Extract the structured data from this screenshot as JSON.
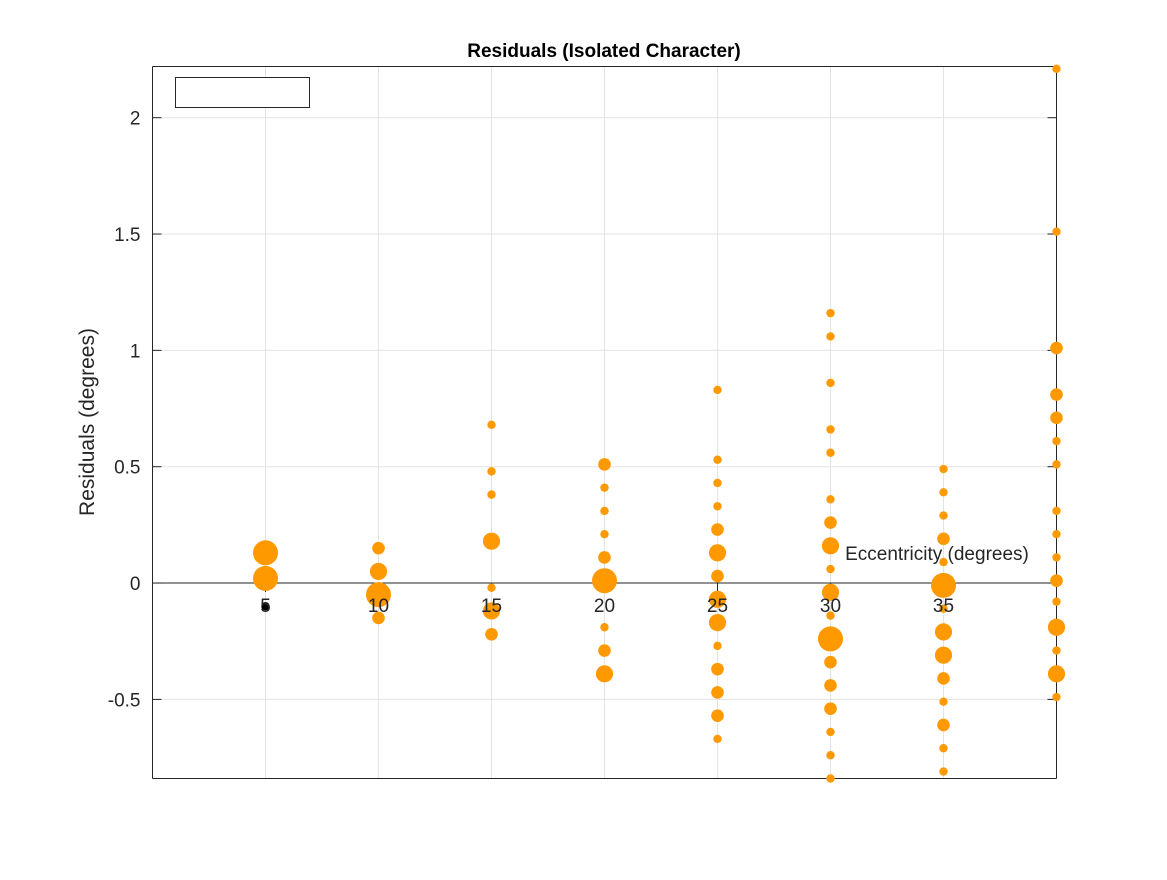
{
  "chart_data": {
    "type": "scatter",
    "title": "Residuals (Isolated Character)",
    "xlabel": "Eccentricity (degrees)",
    "ylabel": "Residuals (degrees)",
    "xlim": [
      0,
      40
    ],
    "ylim": [
      -0.84,
      2.22
    ],
    "xticks": [
      5,
      10,
      15,
      20,
      25,
      30,
      35
    ],
    "xtick_labels": [
      "5",
      "10",
      "15",
      "20",
      "25",
      "30",
      "35"
    ],
    "yticks": [
      -0.5,
      0,
      0.5,
      1,
      1.5,
      2
    ],
    "ytick_labels": [
      "-0.5",
      "0",
      "0.5",
      "1",
      "1.5",
      "2"
    ],
    "grid": true,
    "legend": {
      "placement": "top-left",
      "entries": []
    },
    "colors": {
      "points": "#ff9900",
      "reference": "#000000",
      "axis": "#262626",
      "grid": "#e3e3e3"
    },
    "series": [
      {
        "color": "#ff9900",
        "points": [
          {
            "x": 5,
            "y": 0.13,
            "size": 3
          },
          {
            "x": 5,
            "y": 0.02,
            "size": 3
          },
          {
            "x": 10,
            "y": 0.15,
            "size": 1
          },
          {
            "x": 10,
            "y": 0.05,
            "size": 2
          },
          {
            "x": 10,
            "y": -0.05,
            "size": 3
          },
          {
            "x": 10,
            "y": -0.15,
            "size": 1
          },
          {
            "x": 15,
            "y": 0.68,
            "size": 0
          },
          {
            "x": 15,
            "y": 0.48,
            "size": 0
          },
          {
            "x": 15,
            "y": 0.38,
            "size": 0
          },
          {
            "x": 15,
            "y": 0.18,
            "size": 2
          },
          {
            "x": 15,
            "y": -0.02,
            "size": 0
          },
          {
            "x": 15,
            "y": -0.12,
            "size": 2
          },
          {
            "x": 15,
            "y": -0.22,
            "size": 1
          },
          {
            "x": 20,
            "y": 0.51,
            "size": 1
          },
          {
            "x": 20,
            "y": 0.41,
            "size": 0
          },
          {
            "x": 20,
            "y": 0.31,
            "size": 0
          },
          {
            "x": 20,
            "y": 0.21,
            "size": 0
          },
          {
            "x": 20,
            "y": 0.11,
            "size": 1
          },
          {
            "x": 20,
            "y": 0.01,
            "size": 3
          },
          {
            "x": 20,
            "y": -0.19,
            "size": 0
          },
          {
            "x": 20,
            "y": -0.29,
            "size": 1
          },
          {
            "x": 20,
            "y": -0.39,
            "size": 2
          },
          {
            "x": 25,
            "y": 0.83,
            "size": 0
          },
          {
            "x": 25,
            "y": 0.53,
            "size": 0
          },
          {
            "x": 25,
            "y": 0.43,
            "size": 0
          },
          {
            "x": 25,
            "y": 0.33,
            "size": 0
          },
          {
            "x": 25,
            "y": 0.23,
            "size": 1
          },
          {
            "x": 25,
            "y": 0.13,
            "size": 2
          },
          {
            "x": 25,
            "y": 0.03,
            "size": 1
          },
          {
            "x": 25,
            "y": -0.07,
            "size": 2
          },
          {
            "x": 25,
            "y": -0.17,
            "size": 2
          },
          {
            "x": 25,
            "y": -0.27,
            "size": 0
          },
          {
            "x": 25,
            "y": -0.37,
            "size": 1
          },
          {
            "x": 25,
            "y": -0.47,
            "size": 1
          },
          {
            "x": 25,
            "y": -0.57,
            "size": 1
          },
          {
            "x": 25,
            "y": -0.67,
            "size": 0
          },
          {
            "x": 30,
            "y": 1.16,
            "size": 0
          },
          {
            "x": 30,
            "y": 1.06,
            "size": 0
          },
          {
            "x": 30,
            "y": 0.86,
            "size": 0
          },
          {
            "x": 30,
            "y": 0.66,
            "size": 0
          },
          {
            "x": 30,
            "y": 0.56,
            "size": 0
          },
          {
            "x": 30,
            "y": 0.36,
            "size": 0
          },
          {
            "x": 30,
            "y": 0.26,
            "size": 1
          },
          {
            "x": 30,
            "y": 0.16,
            "size": 2
          },
          {
            "x": 30,
            "y": 0.06,
            "size": 0
          },
          {
            "x": 30,
            "y": -0.04,
            "size": 2
          },
          {
            "x": 30,
            "y": -0.14,
            "size": 0
          },
          {
            "x": 30,
            "y": -0.24,
            "size": 3
          },
          {
            "x": 30,
            "y": -0.34,
            "size": 1
          },
          {
            "x": 30,
            "y": -0.44,
            "size": 1
          },
          {
            "x": 30,
            "y": -0.54,
            "size": 1
          },
          {
            "x": 30,
            "y": -0.64,
            "size": 0
          },
          {
            "x": 30,
            "y": -0.74,
            "size": 0
          },
          {
            "x": 30,
            "y": -0.84,
            "size": 0
          },
          {
            "x": 35,
            "y": 0.49,
            "size": 0
          },
          {
            "x": 35,
            "y": 0.39,
            "size": 0
          },
          {
            "x": 35,
            "y": 0.29,
            "size": 0
          },
          {
            "x": 35,
            "y": 0.19,
            "size": 1
          },
          {
            "x": 35,
            "y": 0.09,
            "size": 0
          },
          {
            "x": 35,
            "y": -0.01,
            "size": 3
          },
          {
            "x": 35,
            "y": -0.11,
            "size": 0
          },
          {
            "x": 35,
            "y": -0.21,
            "size": 2
          },
          {
            "x": 35,
            "y": -0.31,
            "size": 2
          },
          {
            "x": 35,
            "y": -0.41,
            "size": 1
          },
          {
            "x": 35,
            "y": -0.51,
            "size": 0
          },
          {
            "x": 35,
            "y": -0.61,
            "size": 1
          },
          {
            "x": 35,
            "y": -0.71,
            "size": 0
          },
          {
            "x": 35,
            "y": -0.81,
            "size": 0
          },
          {
            "x": 40,
            "y": 2.21,
            "size": 0
          },
          {
            "x": 40,
            "y": 1.51,
            "size": 0
          },
          {
            "x": 40,
            "y": 1.01,
            "size": 1
          },
          {
            "x": 40,
            "y": 0.81,
            "size": 1
          },
          {
            "x": 40,
            "y": 0.71,
            "size": 1
          },
          {
            "x": 40,
            "y": 0.61,
            "size": 0
          },
          {
            "x": 40,
            "y": 0.51,
            "size": 0
          },
          {
            "x": 40,
            "y": 0.31,
            "size": 0
          },
          {
            "x": 40,
            "y": 0.21,
            "size": 0
          },
          {
            "x": 40,
            "y": 0.11,
            "size": 0
          },
          {
            "x": 40,
            "y": 0.01,
            "size": 1
          },
          {
            "x": 40,
            "y": -0.08,
            "size": 0
          },
          {
            "x": 40,
            "y": -0.19,
            "size": 2
          },
          {
            "x": 40,
            "y": -0.29,
            "size": 0
          },
          {
            "x": 40,
            "y": -0.39,
            "size": 2
          },
          {
            "x": 40,
            "y": -0.49,
            "size": 0
          }
        ]
      },
      {
        "color": "#000000",
        "points": [
          {
            "x": 5,
            "y": -0.1,
            "size": 0
          }
        ]
      }
    ]
  }
}
